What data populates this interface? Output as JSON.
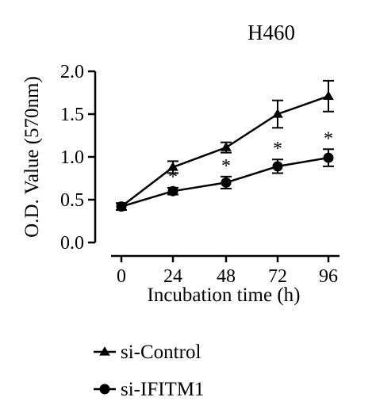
{
  "chart_data": {
    "type": "line",
    "title": "H460",
    "xlabel": "Incubation time (h)",
    "ylabel": "O.D. Value (570nm)",
    "x": [
      0,
      24,
      48,
      72,
      96
    ],
    "x_tick_labels": [
      "0",
      "24",
      "48",
      "72",
      "96"
    ],
    "ylim": [
      0,
      2.0
    ],
    "y_ticks": [
      0.0,
      0.5,
      1.0,
      1.5,
      2.0
    ],
    "y_tick_labels": [
      "0.0",
      "0.5",
      "1.0",
      "1.5",
      "2.0"
    ],
    "grid": false,
    "legend_position": "bottom-left",
    "series": [
      {
        "name": "si-Control",
        "marker": "triangle",
        "values": [
          0.42,
          0.88,
          1.11,
          1.5,
          1.71
        ],
        "errors": [
          0.04,
          0.07,
          0.06,
          0.16,
          0.18
        ]
      },
      {
        "name": "si-IFITM1",
        "marker": "circle",
        "values": [
          0.42,
          0.6,
          0.7,
          0.89,
          0.99
        ],
        "errors": [
          0.04,
          0.04,
          0.07,
          0.08,
          0.1
        ]
      }
    ],
    "annotations": [
      {
        "x": 24,
        "text": "*"
      },
      {
        "x": 48,
        "text": "*"
      },
      {
        "x": 72,
        "text": "*"
      },
      {
        "x": 96,
        "text": "*"
      }
    ]
  }
}
